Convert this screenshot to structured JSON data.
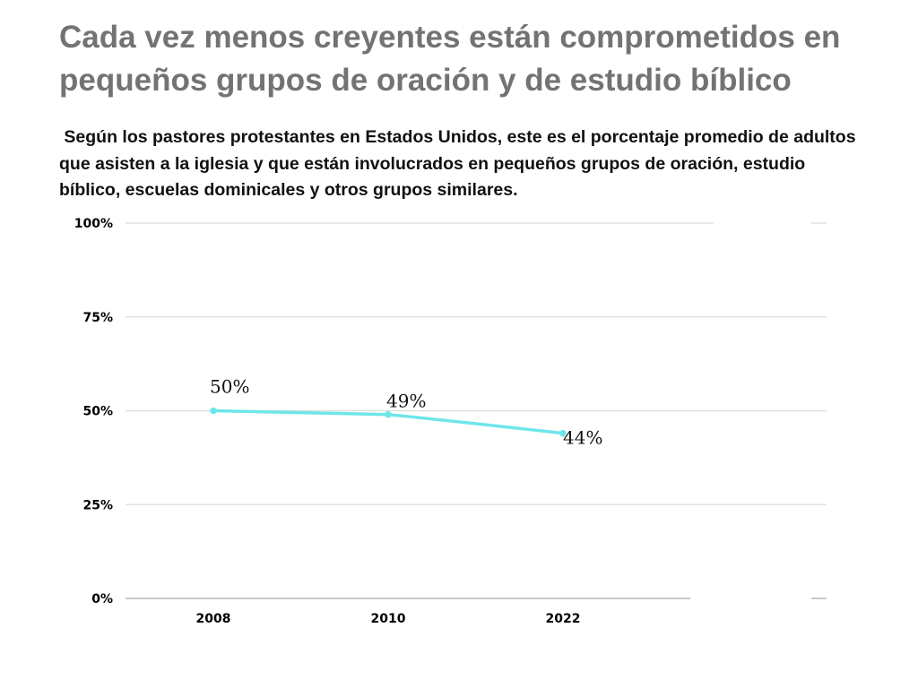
{
  "title": "Cada vez menos creyentes están comprometidos en pequeños grupos de oración y de estudio bíblico",
  "subtitle": " Según los pastores protestantes en Estados Unidos, este es el porcentaje promedio de adultos que asisten a la iglesia y que están involucrados en pequeños grupos de oración, estudio bíblico, escuelas dominicales y otros grupos similares.",
  "chart_data": {
    "type": "line",
    "categories": [
      "2008",
      "2010",
      "2022"
    ],
    "series": [
      {
        "values": [
          50,
          49,
          44
        ],
        "data_labels": [
          "50%",
          "49%",
          "44%"
        ],
        "color": "#6ee6ea"
      }
    ],
    "ylim": [
      0,
      100
    ],
    "yticks": [
      0,
      25,
      50,
      75,
      100
    ],
    "ytick_labels": [
      "0%",
      "25%",
      "50%",
      "75%",
      "100%"
    ],
    "grid": true,
    "legend": "none"
  }
}
